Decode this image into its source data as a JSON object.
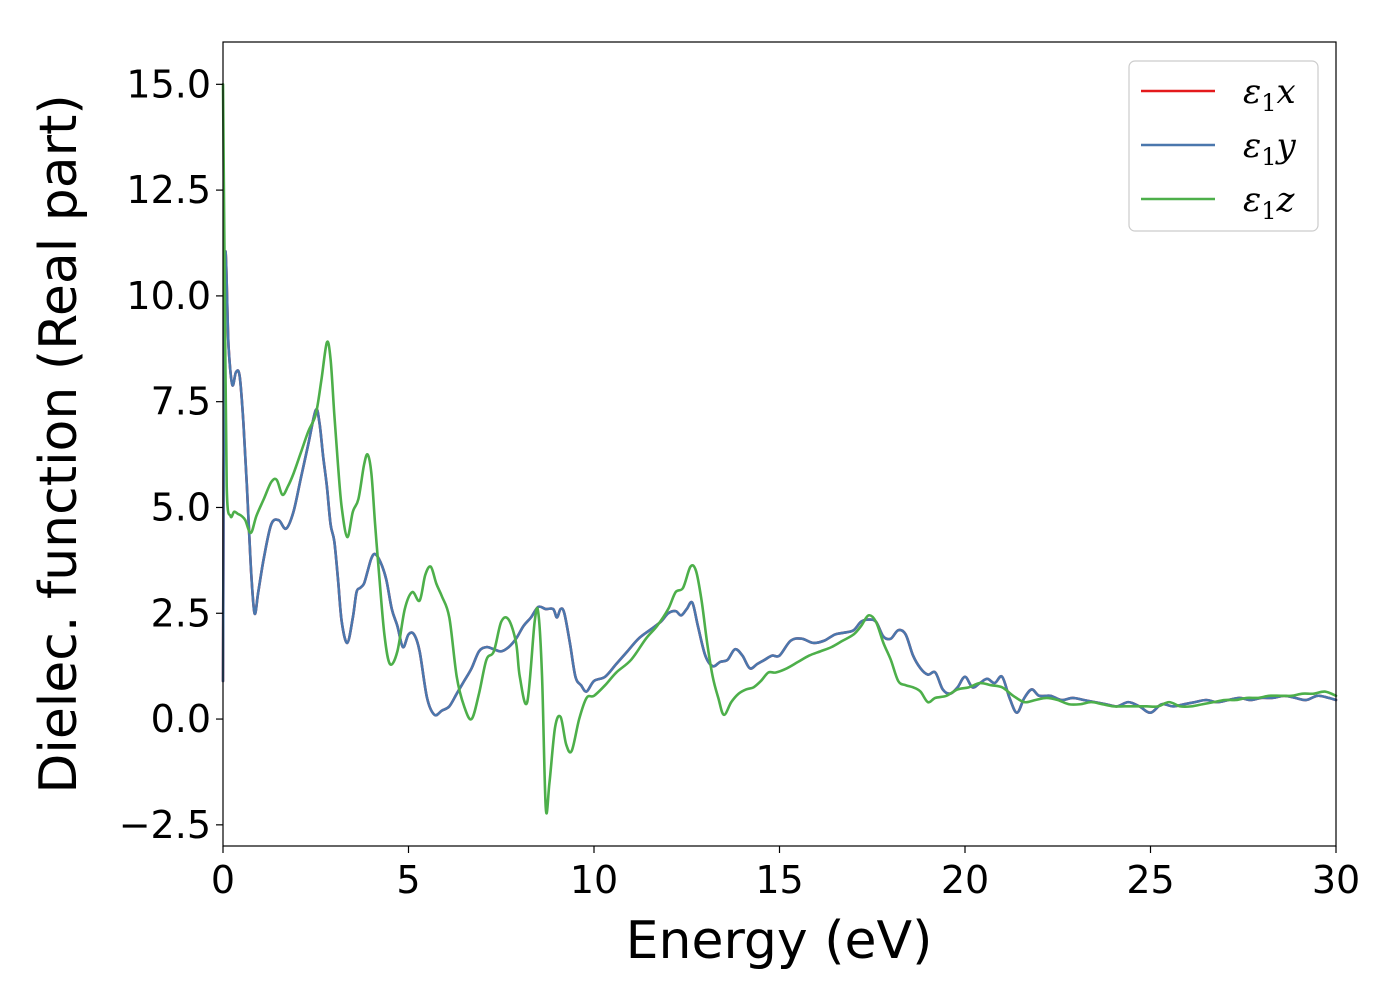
{
  "chart_data": {
    "type": "line",
    "title": "",
    "xlabel": "Energy (eV)",
    "ylabel": "Dielec. function (Real part)",
    "xlim": [
      0,
      30
    ],
    "ylim": [
      -3.0,
      16.0
    ],
    "xticks": [
      0,
      5,
      10,
      15,
      20,
      25,
      30
    ],
    "xtick_labels": [
      "0",
      "5",
      "10",
      "15",
      "20",
      "25",
      "30"
    ],
    "yticks": [
      -2.5,
      0.0,
      2.5,
      5.0,
      7.5,
      10.0,
      12.5,
      15.0
    ],
    "ytick_labels": [
      "−2.5",
      "0.0",
      "2.5",
      "5.0",
      "7.5",
      "10.0",
      "12.5",
      "15.0"
    ],
    "grid": false,
    "legend_position": "top-right",
    "series": [
      {
        "name": "ε₁x",
        "legend_main": "ε",
        "legend_sub": "1",
        "legend_var": "x",
        "color": "#e41a1c",
        "x": [
          0.0,
          0.05,
          0.15,
          0.25,
          0.35,
          0.45,
          0.55,
          0.65,
          0.75,
          0.85,
          0.95,
          1.1,
          1.3,
          1.5,
          1.7,
          1.9,
          2.1,
          2.3,
          2.5,
          2.6,
          2.7,
          2.8,
          2.9,
          3.0,
          3.1,
          3.2,
          3.35,
          3.5,
          3.6,
          3.7,
          3.8,
          3.9,
          4.0,
          4.1,
          4.25,
          4.4,
          4.55,
          4.7,
          4.85,
          5.0,
          5.15,
          5.3,
          5.5,
          5.7,
          5.9,
          6.1,
          6.3,
          6.5,
          6.7,
          6.9,
          7.1,
          7.3,
          7.5,
          7.7,
          7.9,
          8.1,
          8.3,
          8.5,
          8.7,
          8.9,
          9.0,
          9.1,
          9.2,
          9.35,
          9.5,
          9.65,
          9.8,
          10.0,
          10.3,
          10.6,
          10.9,
          11.2,
          11.5,
          11.8,
          12.0,
          12.2,
          12.35,
          12.5,
          12.65,
          12.8,
          13.0,
          13.2,
          13.4,
          13.6,
          13.8,
          14.0,
          14.2,
          14.4,
          14.6,
          14.8,
          15.0,
          15.3,
          15.6,
          15.9,
          16.2,
          16.5,
          16.8,
          17.0,
          17.2,
          17.4,
          17.6,
          17.8,
          18.0,
          18.2,
          18.4,
          18.6,
          18.8,
          19.0,
          19.2,
          19.4,
          19.6,
          19.8,
          20.0,
          20.2,
          20.4,
          20.6,
          20.8,
          21.0,
          21.2,
          21.4,
          21.6,
          21.8,
          22.0,
          22.3,
          22.6,
          22.9,
          23.2,
          23.5,
          23.8,
          24.1,
          24.4,
          24.7,
          25.0,
          25.3,
          25.6,
          25.9,
          26.2,
          26.5,
          26.8,
          27.1,
          27.4,
          27.7,
          28.0,
          28.3,
          28.6,
          28.9,
          29.2,
          29.5,
          29.8,
          30.0
        ],
        "y": [
          0.9,
          10.7,
          8.8,
          7.9,
          8.2,
          8.1,
          7.0,
          5.4,
          3.6,
          2.5,
          3.0,
          3.8,
          4.6,
          4.7,
          4.5,
          4.9,
          5.7,
          6.5,
          7.3,
          7.0,
          6.2,
          5.5,
          4.6,
          4.2,
          3.3,
          2.3,
          1.8,
          2.4,
          3.0,
          3.1,
          3.2,
          3.5,
          3.8,
          3.9,
          3.7,
          3.3,
          2.6,
          2.2,
          1.7,
          2.0,
          2.0,
          1.6,
          0.5,
          0.1,
          0.2,
          0.3,
          0.6,
          0.9,
          1.2,
          1.6,
          1.7,
          1.65,
          1.6,
          1.7,
          1.9,
          2.2,
          2.4,
          2.65,
          2.6,
          2.6,
          2.4,
          2.6,
          2.5,
          1.8,
          1.0,
          0.8,
          0.65,
          0.9,
          1.0,
          1.3,
          1.6,
          1.9,
          2.1,
          2.3,
          2.5,
          2.55,
          2.45,
          2.6,
          2.75,
          2.2,
          1.5,
          1.25,
          1.35,
          1.4,
          1.65,
          1.5,
          1.2,
          1.3,
          1.4,
          1.5,
          1.5,
          1.85,
          1.9,
          1.8,
          1.85,
          2.0,
          2.05,
          2.1,
          2.3,
          2.35,
          2.3,
          1.95,
          1.9,
          2.1,
          2.0,
          1.5,
          1.2,
          1.05,
          1.1,
          0.7,
          0.6,
          0.75,
          1.0,
          0.75,
          0.85,
          0.95,
          0.85,
          1.0,
          0.5,
          0.15,
          0.5,
          0.7,
          0.55,
          0.55,
          0.45,
          0.5,
          0.45,
          0.4,
          0.35,
          0.3,
          0.4,
          0.3,
          0.15,
          0.35,
          0.3,
          0.35,
          0.4,
          0.45,
          0.4,
          0.45,
          0.5,
          0.45,
          0.5,
          0.5,
          0.55,
          0.5,
          0.45,
          0.55,
          0.5,
          0.45
        ]
      },
      {
        "name": "ε₁y",
        "legend_main": "ε",
        "legend_sub": "1",
        "legend_var": "y",
        "color": "#4a77ad",
        "x": [
          0.0,
          0.05,
          0.15,
          0.25,
          0.35,
          0.45,
          0.55,
          0.65,
          0.75,
          0.85,
          0.95,
          1.1,
          1.3,
          1.5,
          1.7,
          1.9,
          2.1,
          2.3,
          2.5,
          2.6,
          2.7,
          2.8,
          2.9,
          3.0,
          3.1,
          3.2,
          3.35,
          3.5,
          3.6,
          3.7,
          3.8,
          3.9,
          4.0,
          4.1,
          4.25,
          4.4,
          4.55,
          4.7,
          4.85,
          5.0,
          5.15,
          5.3,
          5.5,
          5.7,
          5.9,
          6.1,
          6.3,
          6.5,
          6.7,
          6.9,
          7.1,
          7.3,
          7.5,
          7.7,
          7.9,
          8.1,
          8.3,
          8.5,
          8.7,
          8.9,
          9.0,
          9.1,
          9.2,
          9.35,
          9.5,
          9.65,
          9.8,
          10.0,
          10.3,
          10.6,
          10.9,
          11.2,
          11.5,
          11.8,
          12.0,
          12.2,
          12.35,
          12.5,
          12.65,
          12.8,
          13.0,
          13.2,
          13.4,
          13.6,
          13.8,
          14.0,
          14.2,
          14.4,
          14.6,
          14.8,
          15.0,
          15.3,
          15.6,
          15.9,
          16.2,
          16.5,
          16.8,
          17.0,
          17.2,
          17.4,
          17.6,
          17.8,
          18.0,
          18.2,
          18.4,
          18.6,
          18.8,
          19.0,
          19.2,
          19.4,
          19.6,
          19.8,
          20.0,
          20.2,
          20.4,
          20.6,
          20.8,
          21.0,
          21.2,
          21.4,
          21.6,
          21.8,
          22.0,
          22.3,
          22.6,
          22.9,
          23.2,
          23.5,
          23.8,
          24.1,
          24.4,
          24.7,
          25.0,
          25.3,
          25.6,
          25.9,
          26.2,
          26.5,
          26.8,
          27.1,
          27.4,
          27.7,
          28.0,
          28.3,
          28.6,
          28.9,
          29.2,
          29.5,
          29.8,
          30.0
        ],
        "y": [
          0.9,
          10.7,
          8.8,
          7.9,
          8.2,
          8.1,
          7.0,
          5.4,
          3.6,
          2.5,
          3.0,
          3.8,
          4.6,
          4.7,
          4.5,
          4.9,
          5.7,
          6.5,
          7.3,
          7.0,
          6.2,
          5.5,
          4.6,
          4.2,
          3.3,
          2.3,
          1.8,
          2.4,
          3.0,
          3.1,
          3.2,
          3.5,
          3.8,
          3.9,
          3.7,
          3.3,
          2.6,
          2.2,
          1.7,
          2.0,
          2.0,
          1.6,
          0.5,
          0.1,
          0.2,
          0.3,
          0.6,
          0.9,
          1.2,
          1.6,
          1.7,
          1.65,
          1.6,
          1.7,
          1.9,
          2.2,
          2.4,
          2.65,
          2.6,
          2.6,
          2.4,
          2.6,
          2.5,
          1.8,
          1.0,
          0.8,
          0.65,
          0.9,
          1.0,
          1.3,
          1.6,
          1.9,
          2.1,
          2.3,
          2.5,
          2.55,
          2.45,
          2.6,
          2.75,
          2.2,
          1.5,
          1.25,
          1.35,
          1.4,
          1.65,
          1.5,
          1.2,
          1.3,
          1.4,
          1.5,
          1.5,
          1.85,
          1.9,
          1.8,
          1.85,
          2.0,
          2.05,
          2.1,
          2.3,
          2.35,
          2.3,
          1.95,
          1.9,
          2.1,
          2.0,
          1.5,
          1.2,
          1.05,
          1.1,
          0.7,
          0.6,
          0.75,
          1.0,
          0.75,
          0.85,
          0.95,
          0.85,
          1.0,
          0.5,
          0.15,
          0.5,
          0.7,
          0.55,
          0.55,
          0.45,
          0.5,
          0.45,
          0.4,
          0.35,
          0.3,
          0.4,
          0.3,
          0.15,
          0.35,
          0.3,
          0.35,
          0.4,
          0.45,
          0.4,
          0.45,
          0.5,
          0.45,
          0.5,
          0.5,
          0.55,
          0.5,
          0.45,
          0.55,
          0.5,
          0.45
        ]
      },
      {
        "name": "ε₁z",
        "legend_main": "ε",
        "legend_sub": "1",
        "legend_var": "z",
        "color": "#4daf4a",
        "x": [
          0.0,
          0.05,
          0.1,
          0.2,
          0.3,
          0.4,
          0.5,
          0.6,
          0.75,
          0.9,
          1.1,
          1.3,
          1.45,
          1.6,
          1.75,
          1.9,
          2.1,
          2.3,
          2.5,
          2.65,
          2.8,
          2.9,
          3.0,
          3.1,
          3.2,
          3.35,
          3.5,
          3.65,
          3.8,
          3.9,
          4.0,
          4.1,
          4.2,
          4.35,
          4.5,
          4.7,
          4.9,
          5.1,
          5.3,
          5.45,
          5.6,
          5.75,
          5.9,
          6.1,
          6.3,
          6.5,
          6.7,
          6.9,
          7.1,
          7.3,
          7.5,
          7.7,
          7.9,
          8.0,
          8.2,
          8.4,
          8.5,
          8.6,
          8.7,
          8.8,
          8.95,
          9.1,
          9.25,
          9.4,
          9.6,
          9.8,
          10.0,
          10.3,
          10.6,
          11.0,
          11.4,
          11.7,
          12.0,
          12.2,
          12.4,
          12.6,
          12.75,
          12.9,
          13.05,
          13.2,
          13.35,
          13.5,
          13.7,
          13.9,
          14.1,
          14.3,
          14.5,
          14.7,
          14.9,
          15.2,
          15.5,
          15.8,
          16.1,
          16.4,
          16.7,
          17.0,
          17.2,
          17.4,
          17.6,
          17.8,
          18.0,
          18.2,
          18.4,
          18.6,
          18.8,
          19.0,
          19.2,
          19.5,
          19.8,
          20.1,
          20.4,
          20.7,
          21.0,
          21.3,
          21.6,
          21.9,
          22.2,
          22.5,
          22.8,
          23.1,
          23.4,
          23.7,
          24.0,
          24.3,
          24.6,
          24.9,
          25.2,
          25.5,
          25.8,
          26.1,
          26.4,
          26.7,
          27.0,
          27.3,
          27.6,
          27.9,
          28.2,
          28.5,
          28.8,
          29.1,
          29.4,
          29.7,
          30.0
        ],
        "y": [
          15.0,
          10.0,
          5.5,
          4.8,
          4.9,
          4.85,
          4.8,
          4.7,
          4.4,
          4.8,
          5.2,
          5.6,
          5.65,
          5.3,
          5.5,
          5.8,
          6.3,
          6.8,
          7.2,
          8.0,
          8.9,
          8.5,
          7.2,
          6.0,
          5.0,
          4.3,
          4.9,
          5.2,
          6.0,
          6.25,
          5.8,
          4.6,
          3.5,
          2.0,
          1.3,
          1.6,
          2.6,
          3.0,
          2.8,
          3.4,
          3.6,
          3.2,
          2.9,
          2.4,
          1.0,
          0.3,
          0.0,
          0.6,
          1.4,
          1.6,
          2.3,
          2.35,
          1.8,
          1.0,
          0.4,
          2.3,
          2.5,
          1.0,
          -2.1,
          -1.5,
          -0.2,
          0.05,
          -0.6,
          -0.75,
          0.0,
          0.5,
          0.55,
          0.8,
          1.1,
          1.4,
          1.9,
          2.2,
          2.6,
          3.0,
          3.1,
          3.6,
          3.5,
          2.8,
          1.8,
          1.0,
          0.5,
          0.1,
          0.4,
          0.6,
          0.7,
          0.75,
          0.9,
          1.1,
          1.1,
          1.2,
          1.35,
          1.5,
          1.6,
          1.7,
          1.85,
          2.0,
          2.2,
          2.45,
          2.3,
          1.8,
          1.4,
          0.9,
          0.8,
          0.75,
          0.65,
          0.4,
          0.5,
          0.55,
          0.7,
          0.75,
          0.85,
          0.8,
          0.75,
          0.55,
          0.4,
          0.45,
          0.5,
          0.45,
          0.35,
          0.35,
          0.4,
          0.35,
          0.3,
          0.3,
          0.3,
          0.3,
          0.3,
          0.4,
          0.3,
          0.3,
          0.35,
          0.4,
          0.45,
          0.45,
          0.5,
          0.5,
          0.55,
          0.55,
          0.55,
          0.6,
          0.6,
          0.65,
          0.55
        ]
      }
    ]
  }
}
